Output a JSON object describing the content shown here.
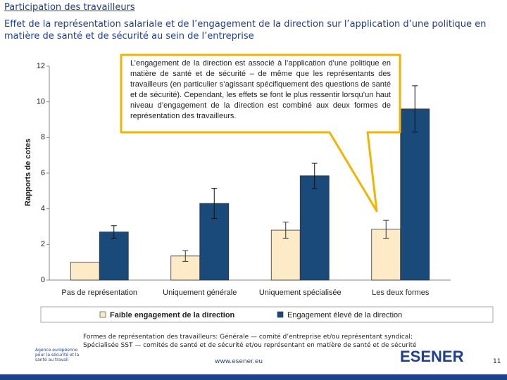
{
  "header": {
    "title": "Participation des travailleurs",
    "subtitle": "Effet de la représentation salariale et de l’engagement de la direction sur l’application d’une politique en matière de santé et de sécurité au sein de l’entreprise"
  },
  "chart_data": {
    "type": "bar",
    "y_label": "Rapports de cotes",
    "categories": [
      "Pas de représentation",
      "Uniquement générale",
      "Uniquement spécialisée",
      "Les deux formes"
    ],
    "series": [
      {
        "name": "Faible engagement de la direction",
        "color": "#fdebc8",
        "values": [
          1.0,
          1.35,
          2.8,
          2.85
        ],
        "errors": [
          null,
          0.3,
          0.45,
          0.5
        ]
      },
      {
        "name": "Engagement élevé de la direction",
        "color": "#1a4a7a",
        "values": [
          2.7,
          4.3,
          5.85,
          9.6
        ],
        "errors": [
          0.35,
          0.85,
          0.7,
          1.3
        ]
      }
    ],
    "ylim": [
      0,
      12
    ],
    "yticks": [
      0,
      2,
      4,
      6,
      8,
      10,
      12
    ],
    "grid": false
  },
  "callout": "L’engagement de la direction est associé à l’application d’une politique en matière de santé et de sécurité – de même que les représentants des travailleurs (en particulier s’agissant spécifiquement des questions de santé et de sécurité). Cependant, les effets se font le plus ressentir lorsqu’un haut niveau d’engagement de la direction est combiné aux deux formes de représentation des travailleurs.",
  "footnote": "Formes de représentation des travailleurs: Générale — comité d’entreprise et/ou représentant syndical; Spécialisée SST — comités de santé et de sécurité et/ou représentant en matière de santé et de sécurité",
  "footer": {
    "agency": "Agence européenne pour la sécurité et la santé au travail",
    "url": "www.esener.eu",
    "logo": "ESENER",
    "page": "11"
  }
}
